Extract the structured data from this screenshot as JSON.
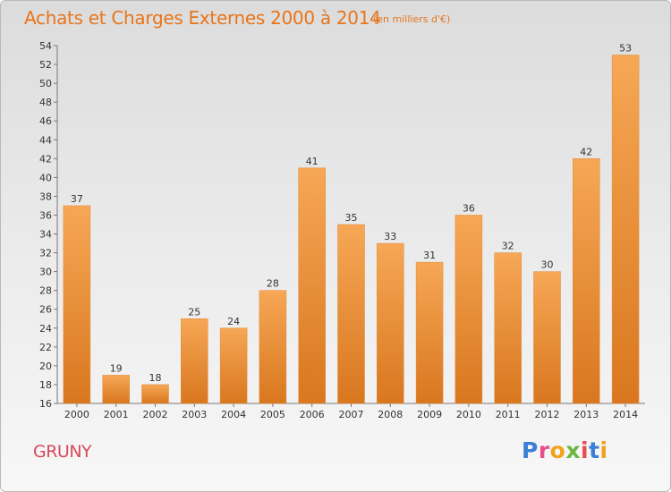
{
  "header": {
    "title": "Achats et Charges Externes 2000 à 2014",
    "subtitle": "(en milliers d'€)"
  },
  "footer": {
    "commune": "GRUNY",
    "logo_text": "Proxiti",
    "logo_colors": [
      "#3a7fd5",
      "#e84d8a",
      "#f2a21d",
      "#6ab744",
      "#e84d4d",
      "#3a7fd5",
      "#f2a21d"
    ]
  },
  "colors": {
    "bar_light": "#f6a755",
    "bar_dark": "#d9771f",
    "title": "#e8751a",
    "commune": "#d8495a"
  },
  "chart_data": {
    "type": "bar",
    "categories": [
      "2000",
      "2001",
      "2002",
      "2003",
      "2004",
      "2005",
      "2006",
      "2007",
      "2008",
      "2009",
      "2010",
      "2011",
      "2012",
      "2013",
      "2014"
    ],
    "values": [
      37,
      19,
      18,
      25,
      24,
      28,
      41,
      35,
      33,
      31,
      36,
      32,
      30,
      42,
      53
    ],
    "ylim": [
      16,
      54
    ],
    "yticks": [
      16,
      18,
      20,
      22,
      24,
      26,
      28,
      30,
      32,
      34,
      36,
      38,
      40,
      42,
      44,
      46,
      48,
      50,
      52,
      54
    ],
    "grid": false,
    "legend": "none"
  }
}
